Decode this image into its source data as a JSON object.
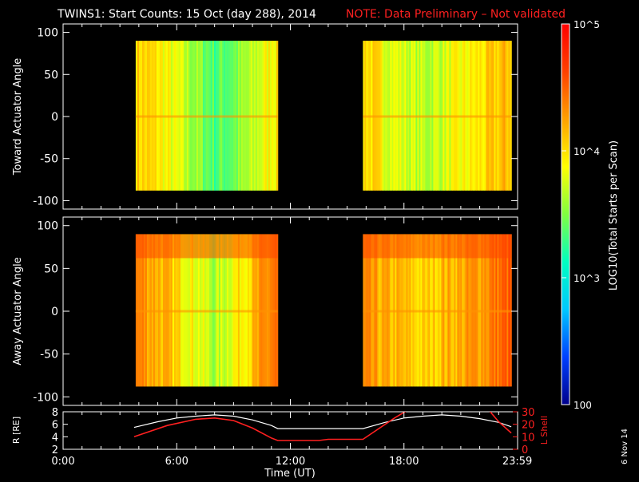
{
  "title": {
    "main": "TWINS1: Start Counts: 15 Oct (day 288), 2014",
    "note": "NOTE: Data Preliminary – Not validated"
  },
  "footer": {
    "date_stamp": "6 Nov 14"
  },
  "colorbar": {
    "label": "LOG10(Total Starts per Scan)",
    "scale": "log",
    "range": [
      100,
      100000
    ],
    "ticks": [
      {
        "value": 100,
        "label": "100"
      },
      {
        "value": 1000,
        "label": "10^3"
      },
      {
        "value": 10000,
        "label": "10^4"
      },
      {
        "value": 100000,
        "label": "10^5"
      }
    ],
    "colors": [
      "#00008c",
      "#0040ff",
      "#00c8ff",
      "#00ffc0",
      "#80ff40",
      "#ffff00",
      "#ffa000",
      "#ff4000",
      "#ff0000"
    ]
  },
  "colors": {
    "note": "#ff2020",
    "l_shell": "#ff2020",
    "r_line": "#ffffff",
    "frame": "#ffffff"
  },
  "chart_data": [
    {
      "type": "heatmap",
      "panel": "toward",
      "ylabel": "Toward Actuator Angle",
      "ylim": [
        -110,
        110
      ],
      "y_ticks": [
        100,
        50,
        0,
        -50,
        -100
      ],
      "x_range_hours": [
        0,
        24
      ],
      "data_blocks": [
        {
          "start": "03:50",
          "end": "11:20",
          "angle_range": [
            -88,
            90
          ]
        },
        {
          "start": "15:50",
          "end": "23:40",
          "angle_range": [
            -88,
            90
          ]
        }
      ],
      "profile": [
        {
          "time": "04:00",
          "log_counts": 4.05
        },
        {
          "time": "05:00",
          "log_counts": 3.95
        },
        {
          "time": "06:00",
          "log_counts": 3.75
        },
        {
          "time": "07:00",
          "log_counts": 3.55
        },
        {
          "time": "08:00",
          "log_counts": 3.35
        },
        {
          "time": "09:00",
          "log_counts": 3.45
        },
        {
          "time": "10:00",
          "log_counts": 3.65
        },
        {
          "time": "11:00",
          "log_counts": 3.95
        },
        {
          "time": "16:00",
          "log_counts": 4.05
        },
        {
          "time": "17:00",
          "log_counts": 3.85
        },
        {
          "time": "18:00",
          "log_counts": 3.75
        },
        {
          "time": "19:00",
          "log_counts": 3.65
        },
        {
          "time": "20:00",
          "log_counts": 3.75
        },
        {
          "time": "21:00",
          "log_counts": 3.85
        },
        {
          "time": "22:00",
          "log_counts": 3.95
        },
        {
          "time": "23:30",
          "log_counts": 4.15
        }
      ]
    },
    {
      "type": "heatmap",
      "panel": "away",
      "ylabel": "Away Actuator Angle",
      "ylim": [
        -110,
        110
      ],
      "y_ticks": [
        100,
        50,
        0,
        -50,
        -100
      ],
      "x_range_hours": [
        0,
        24
      ],
      "data_blocks": [
        {
          "start": "03:50",
          "end": "11:20",
          "angle_range": [
            -88,
            90
          ]
        },
        {
          "start": "15:50",
          "end": "23:40",
          "angle_range": [
            -88,
            90
          ]
        }
      ],
      "profile": [
        {
          "time": "04:00",
          "log_counts": 4.35
        },
        {
          "time": "05:00",
          "log_counts": 4.2
        },
        {
          "time": "06:00",
          "log_counts": 4.0
        },
        {
          "time": "07:00",
          "log_counts": 3.85
        },
        {
          "time": "08:00",
          "log_counts": 3.6
        },
        {
          "time": "09:00",
          "log_counts": 3.9
        },
        {
          "time": "10:00",
          "log_counts": 4.1
        },
        {
          "time": "11:00",
          "log_counts": 4.4
        },
        {
          "time": "16:00",
          "log_counts": 4.25
        },
        {
          "time": "17:00",
          "log_counts": 4.15
        },
        {
          "time": "18:00",
          "log_counts": 4.1
        },
        {
          "time": "19:00",
          "log_counts": 4.0
        },
        {
          "time": "20:00",
          "log_counts": 4.15
        },
        {
          "time": "21:00",
          "log_counts": 4.2
        },
        {
          "time": "22:00",
          "log_counts": 4.3
        },
        {
          "time": "23:30",
          "log_counts": 4.5
        }
      ]
    },
    {
      "type": "line",
      "panel": "orbit",
      "ylabel_left": "R [RE]",
      "ylabel_right": "L Shell",
      "ylim_left": [
        2,
        8
      ],
      "ylim_right": [
        0,
        30
      ],
      "y_ticks_left": [
        2,
        4,
        6,
        8
      ],
      "y_ticks_right": [
        0,
        10,
        20,
        30
      ],
      "xlabel": "Time (UT)",
      "x_ticks": [
        "0:00",
        "6:00",
        "12:00",
        "18:00",
        "23:59"
      ],
      "series": [
        {
          "axis": "left",
          "points": [
            {
              "time": "03:45",
              "value": 5.5
            },
            {
              "time": "05:00",
              "value": 6.4
            },
            {
              "time": "06:00",
              "value": 7.0
            },
            {
              "time": "07:00",
              "value": 7.3
            },
            {
              "time": "08:00",
              "value": 7.5
            },
            {
              "time": "09:00",
              "value": 7.3
            },
            {
              "time": "10:00",
              "value": 6.7
            },
            {
              "time": "11:00",
              "value": 5.8
            },
            {
              "time": "11:20",
              "value": 5.3
            },
            {
              "time": "15:50",
              "value": 5.3
            },
            {
              "time": "17:00",
              "value": 6.3
            },
            {
              "time": "18:00",
              "value": 7.0
            },
            {
              "time": "19:00",
              "value": 7.3
            },
            {
              "time": "20:00",
              "value": 7.5
            },
            {
              "time": "21:00",
              "value": 7.3
            },
            {
              "time": "22:00",
              "value": 6.9
            },
            {
              "time": "23:00",
              "value": 6.3
            },
            {
              "time": "23:40",
              "value": 5.6
            }
          ]
        },
        {
          "axis": "right",
          "segments": [
            [
              {
                "time": "03:45",
                "value": 10
              },
              {
                "time": "05:30",
                "value": 19
              },
              {
                "time": "07:00",
                "value": 24
              },
              {
                "time": "08:00",
                "value": 25
              },
              {
                "time": "09:00",
                "value": 23
              },
              {
                "time": "10:00",
                "value": 17
              },
              {
                "time": "11:00",
                "value": 9
              },
              {
                "time": "11:20",
                "value": 7
              },
              {
                "time": "13:30",
                "value": 7
              },
              {
                "time": "14:00",
                "value": 8
              },
              {
                "time": "15:50",
                "value": 8
              },
              {
                "time": "17:30",
                "value": 25
              },
              {
                "time": "18:10",
                "value": 31
              }
            ],
            [
              {
                "time": "22:30",
                "value": 31
              },
              {
                "time": "23:00",
                "value": 22
              },
              {
                "time": "23:40",
                "value": 13
              }
            ]
          ]
        }
      ]
    }
  ]
}
